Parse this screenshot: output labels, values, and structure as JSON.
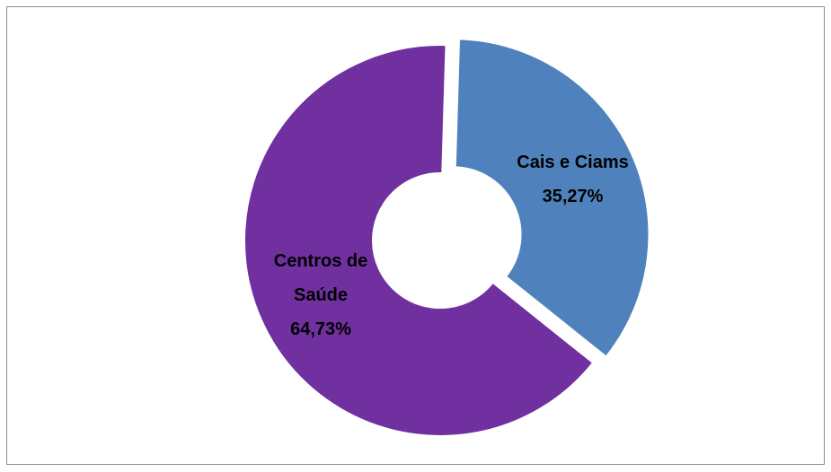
{
  "chart_data": {
    "type": "donut",
    "categories": [
      "Cais e Ciams",
      "Centros de Saúde"
    ],
    "values": [
      35.27,
      64.73
    ],
    "value_labels": [
      "35,27%",
      "64,73%"
    ],
    "colors": [
      "#4f81bd",
      "#7030a0"
    ]
  }
}
